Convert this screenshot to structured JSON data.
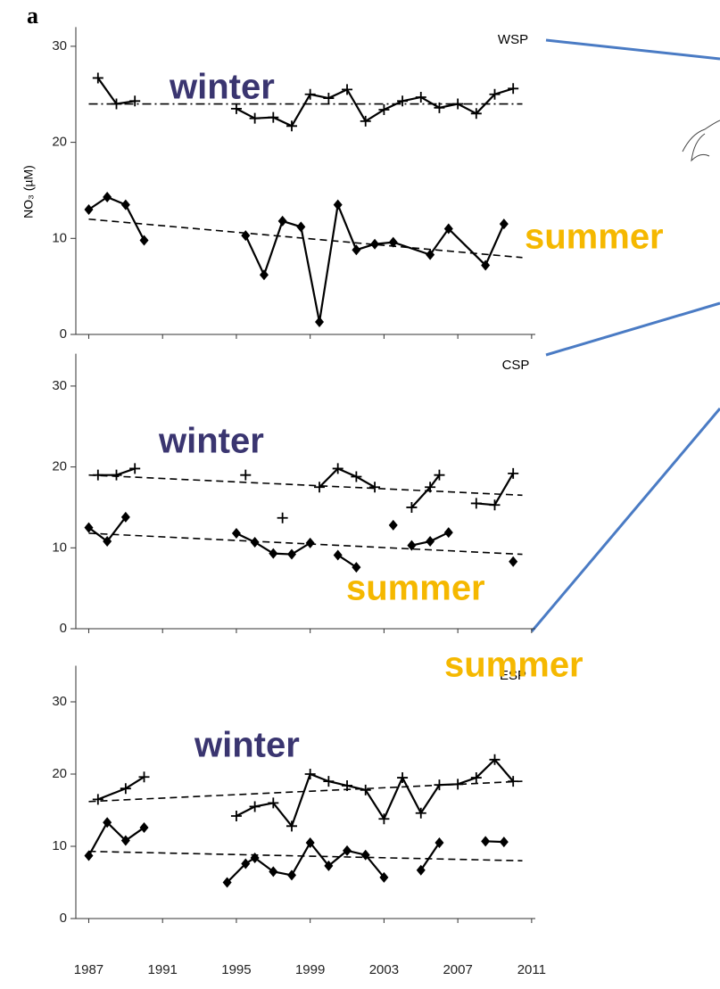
{
  "panel_label": "a",
  "chart_data": [
    {
      "type": "line",
      "label": "WSP",
      "y_label": "NO₃ (µM)",
      "annotations": [
        {
          "text": "winter",
          "color": "#3a3570"
        },
        {
          "text": "summer",
          "color": "#f5b800"
        }
      ],
      "xlim": [
        1986.3,
        2011.2
      ],
      "xticks": [
        1987,
        1991,
        1995,
        1999,
        2003,
        2007,
        2011
      ],
      "ylim": [
        0,
        32
      ],
      "yticks": [
        0,
        10,
        20,
        30
      ],
      "series": [
        {
          "color": "#000",
          "marker": "plus",
          "x": [
            1987.5,
            1988.5,
            1989.5,
            null,
            1995,
            1996,
            1997,
            1998,
            1999,
            2000,
            2001,
            2002,
            2003,
            2004,
            2005,
            2006,
            2007,
            2008,
            2009,
            2010
          ],
          "values": [
            26.7,
            24,
            24.3,
            null,
            23.5,
            22.5,
            22.6,
            21.7,
            25,
            24.6,
            25.5,
            22.2,
            23.4,
            24.3,
            24.7,
            23.6,
            24,
            23,
            25,
            25.6
          ]
        },
        {
          "color": "#000",
          "marker": "diamond",
          "x": [
            1987,
            1988,
            1989,
            1990,
            null,
            1995.5,
            1996.5,
            1997.5,
            1998.5,
            1999.5,
            2000.5,
            2001.5,
            2002.5,
            2003.5,
            2005.5,
            2006.5,
            2008.5,
            2009.5
          ],
          "values": [
            13,
            14.3,
            13.5,
            9.8,
            null,
            10.3,
            6.2,
            11.8,
            11.2,
            1.3,
            13.5,
            8.8,
            9.4,
            9.6,
            8.3,
            11,
            7.2,
            11.5
          ]
        },
        {
          "color": "#000",
          "dash": "10,4,2,4",
          "x": [
            1987,
            2010.5
          ],
          "values": [
            24,
            24
          ]
        },
        {
          "color": "#000",
          "dash": "8,5",
          "x": [
            1987,
            2010.5
          ],
          "values": [
            12,
            8
          ]
        }
      ]
    },
    {
      "type": "line",
      "label": "CSP",
      "annotations": [
        {
          "text": "winter",
          "color": "#3a3570"
        },
        {
          "text": "summer",
          "color": "#f5b800"
        }
      ],
      "xlim": [
        1986.3,
        2011.2
      ],
      "xticks": [
        1987,
        1991,
        1995,
        1999,
        2003,
        2007,
        2011
      ],
      "ylim": [
        0,
        34
      ],
      "yticks": [
        0,
        10,
        20,
        30
      ],
      "series": [
        {
          "color": "#000",
          "marker": "plus",
          "x": [
            1987.5,
            1988.5,
            1989.5,
            null,
            1995.5,
            null,
            1997.5,
            null,
            1999.5,
            2000.5,
            2001.5,
            2002.5,
            null,
            2004.5,
            2005.5,
            2006,
            null,
            2008,
            2009,
            2010
          ],
          "values": [
            19,
            19,
            19.8,
            null,
            19,
            null,
            13.7,
            null,
            17.5,
            19.8,
            18.8,
            17.5,
            null,
            15,
            17.5,
            19,
            null,
            15.5,
            15.3,
            19.2
          ]
        },
        {
          "color": "#000",
          "marker": "diamond",
          "x": [
            1987,
            1988,
            1989,
            null,
            1995,
            1996,
            1997,
            1998,
            1999,
            null,
            2000.5,
            2001.5,
            null,
            2003.5,
            null,
            2004.5,
            2005.5,
            2006.5,
            null,
            2010
          ],
          "values": [
            12.5,
            10.8,
            13.8,
            null,
            11.8,
            10.7,
            9.3,
            9.2,
            10.6,
            null,
            9.1,
            7.6,
            null,
            12.8,
            null,
            10.3,
            10.8,
            11.9,
            null,
            8.3
          ]
        },
        {
          "color": "#000",
          "dash": "8,5",
          "x": [
            1987,
            2010.5
          ],
          "values": [
            19,
            16.5
          ]
        },
        {
          "color": "#000",
          "dash": "8,5",
          "x": [
            1987,
            2010.5
          ],
          "values": [
            11.8,
            9.2
          ]
        }
      ]
    },
    {
      "type": "line",
      "label": "ESP",
      "annotations": [
        {
          "text": "winter",
          "color": "#3a3570"
        },
        {
          "text": "summer",
          "color": "#f5b800"
        }
      ],
      "xlim": [
        1986.3,
        2011.2
      ],
      "xticks": [
        1987,
        1991,
        1995,
        1999,
        2003,
        2007,
        2011
      ],
      "ylim": [
        0,
        35
      ],
      "yticks": [
        0,
        10,
        20,
        30
      ],
      "series": [
        {
          "color": "#000",
          "marker": "plus",
          "x": [
            1987.5,
            1989,
            1990,
            null,
            1995,
            1996,
            1997,
            1998,
            1999,
            2000,
            2001,
            2002,
            2003,
            2004,
            2005,
            2006,
            2007,
            2008,
            2009,
            2010
          ],
          "values": [
            16.5,
            18,
            19.6,
            null,
            14.2,
            15.5,
            16,
            12.8,
            20,
            19,
            18.4,
            17.8,
            13.8,
            19.5,
            14.6,
            18.5,
            18.6,
            19.5,
            22,
            19
          ]
        },
        {
          "color": "#000",
          "marker": "diamond",
          "x": [
            1987,
            1988,
            1989,
            1990,
            null,
            1994.5,
            1995.5,
            1996,
            1997,
            1998,
            1999,
            2000,
            2001,
            2002,
            2003,
            null,
            2005,
            2006,
            null,
            2008.5,
            2009.5
          ],
          "values": [
            8.7,
            13.3,
            10.8,
            12.6,
            null,
            5,
            7.6,
            8.4,
            6.5,
            6,
            10.5,
            7.3,
            9.4,
            8.8,
            5.7,
            null,
            6.7,
            10.5,
            null,
            10.7,
            10.6
          ]
        },
        {
          "color": "#000",
          "dash": "8,5",
          "x": [
            1987,
            2010.5
          ],
          "values": [
            16.2,
            19
          ]
        },
        {
          "color": "#000",
          "dash": "8,5",
          "x": [
            1987,
            2010.5
          ],
          "values": [
            9.3,
            8
          ]
        }
      ]
    }
  ]
}
